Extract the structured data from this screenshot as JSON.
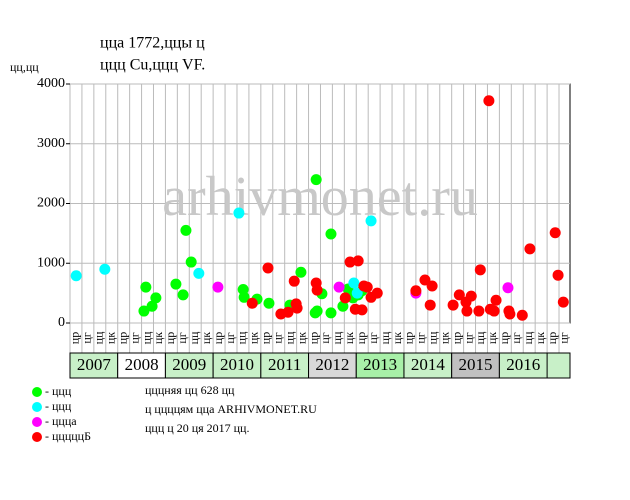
{
  "chart_data": {
    "type": "scatter",
    "title": "ццa 1772,ццы ц",
    "subtitle": "ццц Cu,ццц VF.",
    "y_label": "цц,цц",
    "watermark": "arhivmonet.ru",
    "xlim": [
      2007,
      2017.48
    ],
    "ylim": [
      0,
      4000
    ],
    "yticks": [
      0,
      1000,
      2000,
      3000,
      4000
    ],
    "grid": true,
    "years": [
      "2007",
      "2008",
      "2009",
      "2010",
      "2011",
      "2012",
      "2013",
      "2014",
      "2015",
      "2016"
    ],
    "year_colors": [
      "#c8f0c8",
      "#ffffff",
      "#c8f0c8",
      "#c8f0c8",
      "#c8f0c8",
      "#d8d8d8",
      "#a8f0a8",
      "#c8f0c8",
      "#c0c0c0",
      "#c8f0c8"
    ],
    "quarter_labels": [
      "цр",
      "цг",
      "цц",
      "цк"
    ],
    "series": [
      {
        "name": "- ццц",
        "color": "#00ff00",
        "x": [
          2008.55,
          2008.59,
          2008.72,
          2008.8,
          2009.22,
          2009.37,
          2009.43,
          2009.54,
          2010.63,
          2010.65,
          2010.92,
          2011.17,
          2011.61,
          2011.84,
          2012.14,
          2012.16,
          2012.18,
          2012.28,
          2012.47,
          2012.47,
          2012.72,
          2012.83,
          2012.93,
          2013.04,
          2013.12
        ],
        "values": [
          200,
          600,
          280,
          420,
          650,
          470,
          1550,
          1020,
          560,
          430,
          400,
          330,
          300,
          850,
          170,
          2400,
          200,
          490,
          1490,
          170,
          280,
          570,
          420,
          470,
          540
        ]
      },
      {
        "name": "- ццц",
        "color": "#00ffff",
        "x": [
          2007.13,
          2007.73,
          2009.7,
          2010.54,
          2012.95,
          2013.02,
          2013.31
        ],
        "values": [
          790,
          900,
          830,
          1840,
          670,
          500,
          1710
        ]
      },
      {
        "name": "- ццца",
        "color": "#ff00ff",
        "x": [
          2010.1,
          2012.64,
          2014.25,
          2016.18
        ],
        "values": [
          600,
          600,
          500,
          590
        ]
      },
      {
        "name": "- цццццБ",
        "color": "#ff0000",
        "x": [
          2010.82,
          2011.15,
          2011.42,
          2011.57,
          2011.7,
          2011.74,
          2011.76,
          2012.16,
          2012.18,
          2012.77,
          2012.87,
          2013.04,
          2012.98,
          2013.12,
          2013.16,
          2013.23,
          2013.31,
          2013.44,
          2014.25,
          2014.44,
          2014.55,
          2014.59,
          2015.03,
          2015.16,
          2015.3,
          2015.32,
          2015.41,
          2015.57,
          2015.6,
          2015.78,
          2015.81,
          2015.89,
          2015.93,
          2016.2,
          2016.22,
          2016.48,
          2016.64,
          2017.17,
          2017.23,
          2017.34
        ],
        "values": [
          330,
          920,
          150,
          180,
          700,
          320,
          250,
          670,
          550,
          420,
          1020,
          1040,
          230,
          220,
          620,
          600,
          430,
          500,
          540,
          720,
          300,
          620,
          300,
          470,
          350,
          200,
          450,
          200,
          890,
          3720,
          230,
          200,
          380,
          200,
          150,
          130,
          1240,
          1510,
          800,
          350
        ]
      }
    ],
    "notes": [
      "цццняя цц 628 цц",
      "ц ццццям цца ARHIVMONET.RU",
      "ццц ц 20 ця 2017 цц."
    ]
  }
}
